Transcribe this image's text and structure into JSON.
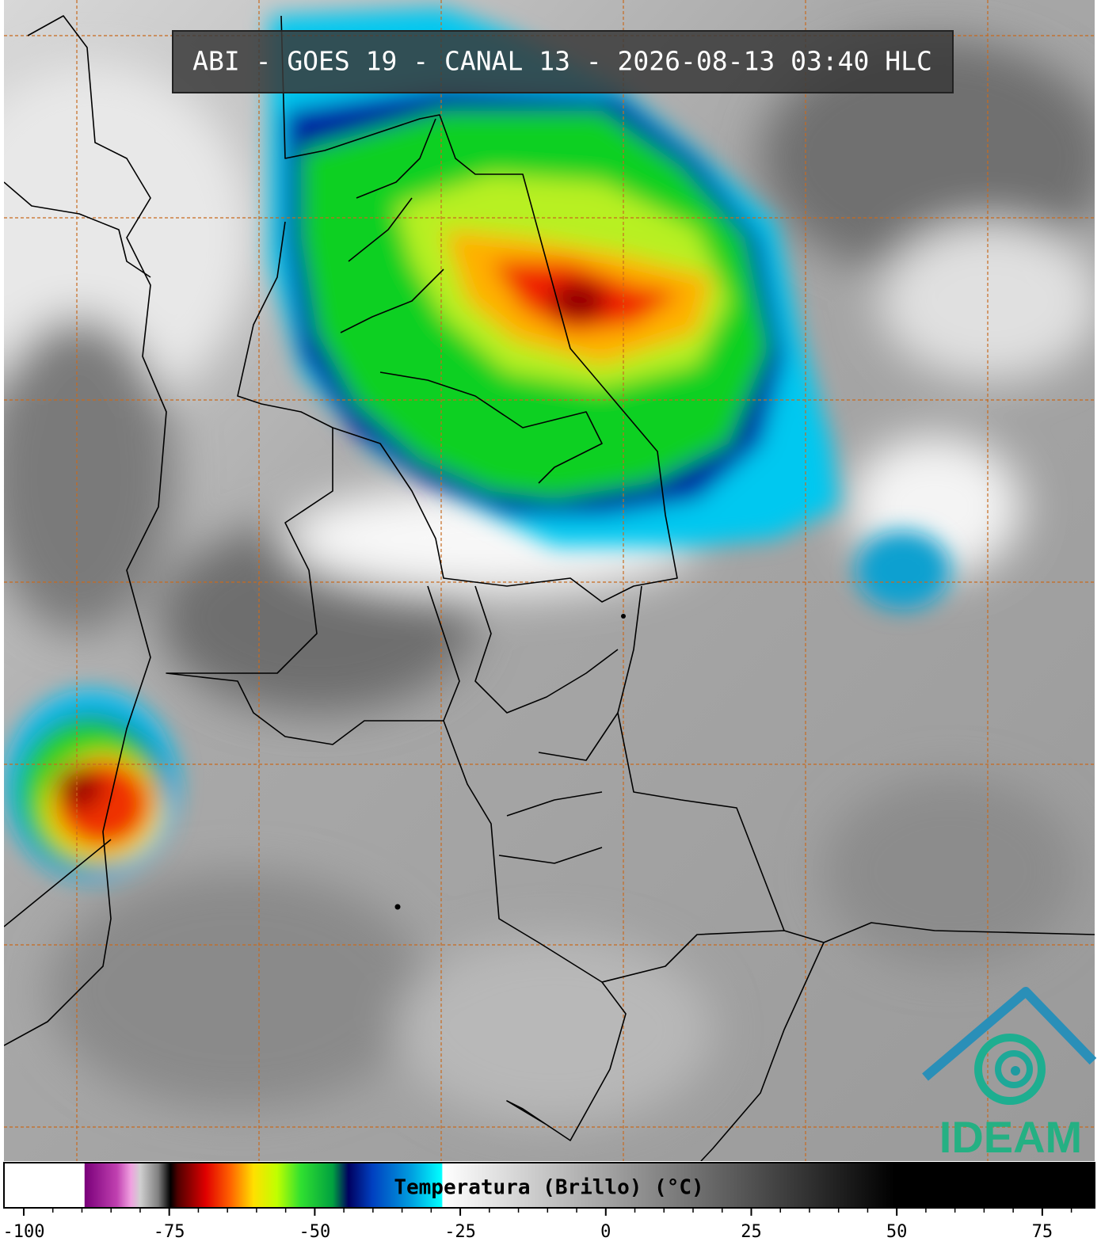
{
  "title": "ABI - GOES 19 - CANAL 13 - 2026-08-13 03:40 HLC",
  "colorbar": {
    "label": "Temperatura (Brillo) (°C)",
    "range": [
      -103.4,
      84
    ],
    "ticks": [
      -100,
      -75,
      -50,
      -25,
      0,
      25,
      50,
      75
    ],
    "colormap": [
      {
        "value": -103.4,
        "color": "#ffffff"
      },
      {
        "value": -89.6,
        "color": "#ffffff"
      },
      {
        "value": -89.5,
        "color": "#7a007a"
      },
      {
        "value": -84,
        "color": "#c040b0"
      },
      {
        "value": -81.6,
        "color": "#f0a0e0"
      },
      {
        "value": -80,
        "color": "#d0d0d0"
      },
      {
        "value": -76.9,
        "color": "#808080"
      },
      {
        "value": -74.8,
        "color": "#000000"
      },
      {
        "value": -73.5,
        "color": "#500000"
      },
      {
        "value": -68.7,
        "color": "#e00000"
      },
      {
        "value": -64.6,
        "color": "#ff6000"
      },
      {
        "value": -60.5,
        "color": "#ffe000"
      },
      {
        "value": -56.5,
        "color": "#c0ff00"
      },
      {
        "value": -52.4,
        "color": "#30e030"
      },
      {
        "value": -46.9,
        "color": "#00a040"
      },
      {
        "value": -44.2,
        "color": "#000060"
      },
      {
        "value": -40.1,
        "color": "#0040c0"
      },
      {
        "value": -33.3,
        "color": "#00a0e0"
      },
      {
        "value": -28.2,
        "color": "#00ffff"
      },
      {
        "value": -28,
        "color": "#ffffff"
      },
      {
        "value": 49.7,
        "color": "#000000"
      },
      {
        "value": 84,
        "color": "#000000"
      }
    ]
  },
  "logo": "IDEAM"
}
